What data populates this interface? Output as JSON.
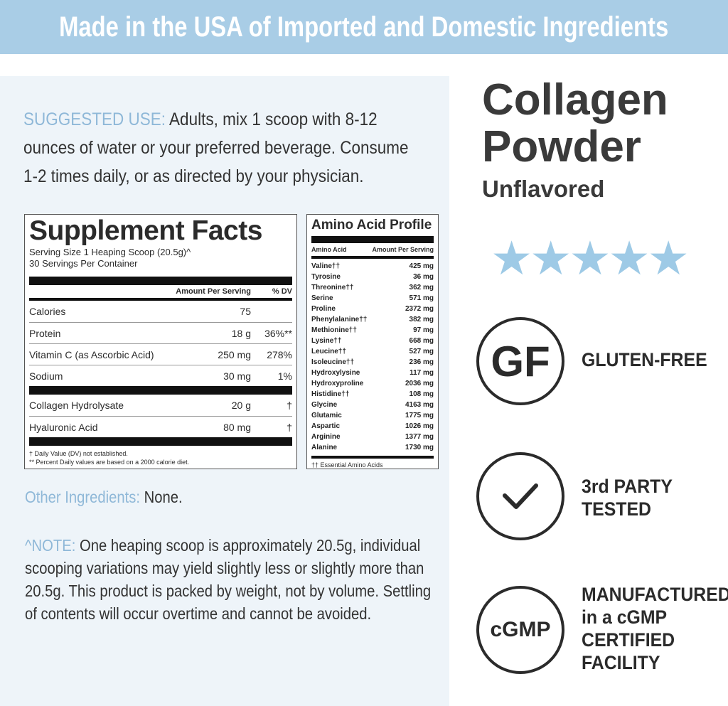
{
  "banner": "Made in the USA of Imported and Domestic Ingredients",
  "suggested_use": {
    "label": "SUGGESTED USE:",
    "text": " Adults, mix 1 scoop with 8-12 ounces of water or your preferred beverage. Consume 1-2 times daily, or as directed by your physician."
  },
  "supplement_facts": {
    "title": "Supplement Facts",
    "serving_size": "Serving Size 1 Heaping Scoop (20.5g)^",
    "servings": "30 Servings Per Container",
    "col_amount": "Amount Per Serving",
    "col_dv": "% DV",
    "rows": [
      {
        "name": "Calories",
        "amount": "75",
        "dv": ""
      },
      {
        "name": "Protein",
        "amount": "18 g",
        "dv": "36%**"
      },
      {
        "name": "Vitamin C (as Ascorbic Acid)",
        "amount": "250 mg",
        "dv": "278%"
      },
      {
        "name": "Sodium",
        "amount": "30 mg",
        "dv": "1%"
      }
    ],
    "rows2": [
      {
        "name": "Collagen Hydrolysate",
        "amount": "20 g",
        "dv": "†"
      },
      {
        "name": "Hyaluronic Acid",
        "amount": "80 mg",
        "dv": "†"
      }
    ],
    "foot1": "† Daily Value (DV) not established.",
    "foot2": "** Percent Daily values are based on a 2000 calorie diet."
  },
  "amino": {
    "title": "Amino Acid Profile",
    "col_name": "Amino Acid",
    "col_amount": "Amount Per Serving",
    "rows": [
      {
        "name": "Valine††",
        "amount": "425 mg"
      },
      {
        "name": "Tyrosine",
        "amount": "36 mg"
      },
      {
        "name": "Threonine††",
        "amount": "362 mg"
      },
      {
        "name": "Serine",
        "amount": "571 mg"
      },
      {
        "name": "Proline",
        "amount": "2372 mg"
      },
      {
        "name": "Phenylalanine††",
        "amount": "382 mg"
      },
      {
        "name": "Methionine††",
        "amount": "97 mg"
      },
      {
        "name": "Lysine††",
        "amount": "668 mg"
      },
      {
        "name": "Leucine††",
        "amount": "527 mg"
      },
      {
        "name": "Isoleucine††",
        "amount": "236 mg"
      },
      {
        "name": "Hydroxylysine",
        "amount": "117 mg"
      },
      {
        "name": "Hydroxyproline",
        "amount": "2036 mg"
      },
      {
        "name": "Histidine††",
        "amount": "108 mg"
      },
      {
        "name": "Glycine",
        "amount": "4163 mg"
      },
      {
        "name": "Glutamic",
        "amount": "1775 mg"
      },
      {
        "name": "Aspartic",
        "amount": "1026 mg"
      },
      {
        "name": "Arginine",
        "amount": "1377 mg"
      },
      {
        "name": "Alanine",
        "amount": "1730 mg"
      }
    ],
    "foot": "†† Essential Amino Acids"
  },
  "other": {
    "label": "Other Ingredients:",
    "text": " None."
  },
  "note": {
    "label": "^NOTE:",
    "text": " One heaping scoop is approximately 20.5g, individual scooping variations may yield slightly less or slightly more than 20.5g. This product is packed by weight, not by volume. Settling of contents will occur overtime and cannot be avoided."
  },
  "product": {
    "title1": "Collagen",
    "title2": "Powder",
    "flavor": "Unflavored",
    "rating": 5,
    "stars": "★★★★★"
  },
  "badges": [
    {
      "icon": "GF",
      "line1": "GLUTEN-FREE"
    },
    {
      "icon": "check-icon",
      "line1": "3rd PARTY",
      "line2": "TESTED"
    },
    {
      "icon": "cGMP",
      "line1": "MANUFACTURED",
      "line2": "in a cGMP",
      "line3": "CERTIFIED",
      "line4": "FACILITY"
    }
  ],
  "colors": {
    "banner": "#a9cde6",
    "panel": "#eef4f9",
    "label": "#8fb8d8",
    "stars": "#9ecae6"
  }
}
